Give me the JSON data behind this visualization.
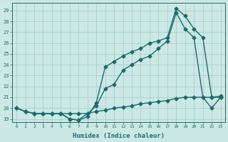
{
  "xlabel": "Humidex (Indice chaleur)",
  "bg_color": "#cce8e5",
  "grid_color": "#a8cece",
  "line_color": "#1a6b6b",
  "xlim": [
    -0.5,
    23.5
  ],
  "ylim": [
    18.7,
    29.7
  ],
  "xticks": [
    0,
    1,
    2,
    3,
    4,
    5,
    6,
    7,
    8,
    9,
    10,
    11,
    12,
    13,
    14,
    15,
    16,
    17,
    18,
    19,
    20,
    21,
    22,
    23
  ],
  "yticks": [
    19,
    20,
    21,
    22,
    23,
    24,
    25,
    26,
    27,
    28,
    29
  ],
  "s1_x": [
    0,
    1,
    2,
    3,
    4,
    5,
    6,
    7,
    8,
    9,
    10,
    11,
    12,
    13,
    14,
    15,
    16,
    17,
    18,
    19,
    20,
    21,
    22,
    23
  ],
  "s1_y": [
    20.0,
    19.7,
    19.5,
    19.5,
    19.5,
    19.5,
    19.5,
    19.5,
    19.5,
    19.7,
    19.8,
    20.0,
    20.1,
    20.2,
    20.4,
    20.5,
    20.6,
    20.7,
    20.9,
    21.0,
    21.0,
    21.0,
    21.0,
    21.1
  ],
  "s2_x": [
    0,
    1,
    2,
    3,
    4,
    5,
    6,
    7,
    8,
    9,
    10,
    11,
    12,
    13,
    14,
    15,
    16,
    17,
    18,
    19,
    20,
    21,
    22,
    23
  ],
  "s2_y": [
    20.0,
    19.7,
    19.5,
    19.5,
    19.5,
    19.5,
    19.0,
    18.9,
    19.5,
    20.2,
    21.8,
    22.2,
    23.5,
    24.0,
    24.5,
    24.8,
    25.5,
    26.2,
    28.8,
    27.3,
    26.5,
    21.0,
    20.0,
    21.0
  ],
  "s3_x": [
    0,
    1,
    2,
    3,
    4,
    5,
    6,
    7,
    8,
    9,
    10,
    11,
    12,
    13,
    14,
    15,
    16,
    17,
    18,
    19,
    20,
    21,
    22,
    23
  ],
  "s3_y": [
    20.0,
    19.7,
    19.5,
    19.5,
    19.5,
    19.5,
    19.0,
    18.9,
    19.2,
    20.5,
    23.8,
    24.3,
    24.8,
    25.2,
    25.5,
    26.0,
    26.2,
    26.5,
    29.2,
    28.5,
    27.3,
    26.5,
    21.0,
    21.0
  ]
}
